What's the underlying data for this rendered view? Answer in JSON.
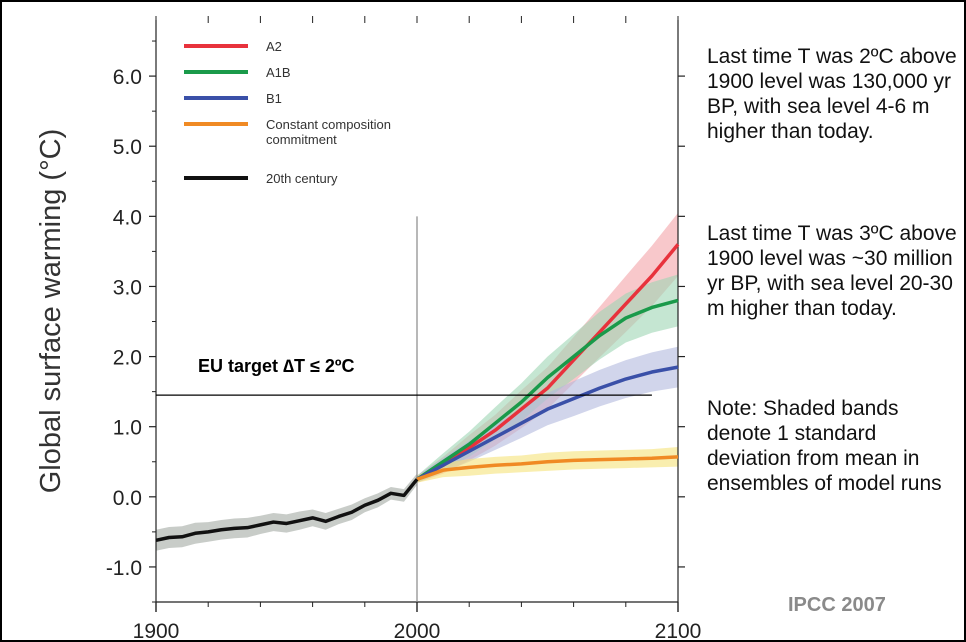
{
  "chart_data": {
    "type": "line",
    "ylabel": "Global surface warming (°C)",
    "xlabel": "",
    "title": "",
    "xlim": [
      1900,
      2100
    ],
    "ylim": [
      -1.5,
      6.8
    ],
    "x_ticks": [
      "1900",
      "2000",
      "2100"
    ],
    "y_ticks": [
      "-1.0",
      "0.0",
      "1.0",
      "2.0",
      "3.0",
      "4.0",
      "5.0",
      "6.0"
    ],
    "legend_position": "top-left",
    "grid": false,
    "reference_line": {
      "x": 2000
    },
    "target_line": {
      "y": 1.45,
      "x_range": [
        1900,
        2090
      ],
      "label": "EU target ∆T ≤ 2ºC"
    },
    "series": [
      {
        "name": "A2",
        "color": "#e8323c",
        "band_color": "#f3a3a8",
        "x": [
          2000,
          2010,
          2020,
          2030,
          2040,
          2050,
          2060,
          2070,
          2080,
          2090,
          2100
        ],
        "y": [
          0.25,
          0.45,
          0.7,
          0.95,
          1.25,
          1.55,
          1.95,
          2.35,
          2.75,
          3.15,
          3.6
        ],
        "sd": [
          0.05,
          0.12,
          0.18,
          0.22,
          0.27,
          0.3,
          0.33,
          0.36,
          0.4,
          0.43,
          0.45
        ]
      },
      {
        "name": "A1B",
        "color": "#1a9a4a",
        "band_color": "#9fd6b4",
        "x": [
          2000,
          2010,
          2020,
          2030,
          2040,
          2050,
          2060,
          2070,
          2080,
          2090,
          2100
        ],
        "y": [
          0.25,
          0.5,
          0.75,
          1.05,
          1.35,
          1.7,
          2.0,
          2.3,
          2.55,
          2.7,
          2.8
        ],
        "sd": [
          0.05,
          0.12,
          0.18,
          0.23,
          0.27,
          0.3,
          0.32,
          0.34,
          0.35,
          0.36,
          0.37
        ]
      },
      {
        "name": "B1",
        "color": "#3a50a8",
        "band_color": "#b3b9dd",
        "x": [
          2000,
          2010,
          2020,
          2030,
          2040,
          2050,
          2060,
          2070,
          2080,
          2090,
          2100
        ],
        "y": [
          0.25,
          0.45,
          0.65,
          0.85,
          1.05,
          1.25,
          1.4,
          1.55,
          1.68,
          1.78,
          1.85
        ],
        "sd": [
          0.05,
          0.1,
          0.15,
          0.18,
          0.21,
          0.23,
          0.25,
          0.26,
          0.27,
          0.28,
          0.29
        ]
      },
      {
        "name": "Constant composition commitment",
        "color": "#f08a24",
        "band_color": "#f5e27a",
        "x": [
          2000,
          2010,
          2020,
          2030,
          2040,
          2050,
          2060,
          2070,
          2080,
          2090,
          2100
        ],
        "y": [
          0.25,
          0.38,
          0.42,
          0.45,
          0.47,
          0.5,
          0.52,
          0.53,
          0.54,
          0.55,
          0.57
        ],
        "sd": [
          0.05,
          0.1,
          0.12,
          0.12,
          0.12,
          0.13,
          0.13,
          0.13,
          0.13,
          0.13,
          0.14
        ]
      },
      {
        "name": "20th century",
        "color": "#111111",
        "band_color": "#a3aaa3",
        "x": [
          1900,
          1905,
          1910,
          1915,
          1920,
          1925,
          1930,
          1935,
          1940,
          1945,
          1950,
          1955,
          1960,
          1965,
          1970,
          1975,
          1980,
          1985,
          1990,
          1995,
          2000
        ],
        "y": [
          -0.62,
          -0.58,
          -0.57,
          -0.52,
          -0.5,
          -0.47,
          -0.45,
          -0.44,
          -0.4,
          -0.36,
          -0.38,
          -0.34,
          -0.3,
          -0.35,
          -0.28,
          -0.22,
          -0.12,
          -0.05,
          0.05,
          0.02,
          0.25
        ],
        "sd": [
          0.15,
          0.15,
          0.15,
          0.15,
          0.14,
          0.14,
          0.14,
          0.14,
          0.13,
          0.13,
          0.13,
          0.13,
          0.12,
          0.12,
          0.11,
          0.11,
          0.1,
          0.1,
          0.09,
          0.09,
          0.08
        ]
      }
    ]
  },
  "legend_labels": {
    "a2": "A2",
    "a1b": "A1B",
    "b1": "B1",
    "constant_1": "Constant composition",
    "constant_2": "commitment",
    "twentieth": "20th century"
  },
  "notes": {
    "note1": "Last time T was 2ºC above 1900 level was 130,000 yr BP, with sea level 4-6 m higher than today.",
    "note2": "Last time T was 3ºC above 1900 level was ~30 million yr BP, with sea level 20-30 m higher than today.",
    "note3": "Note: Shaded bands denote 1 standard deviation from mean in ensembles of model runs"
  },
  "source": "IPCC 2007"
}
